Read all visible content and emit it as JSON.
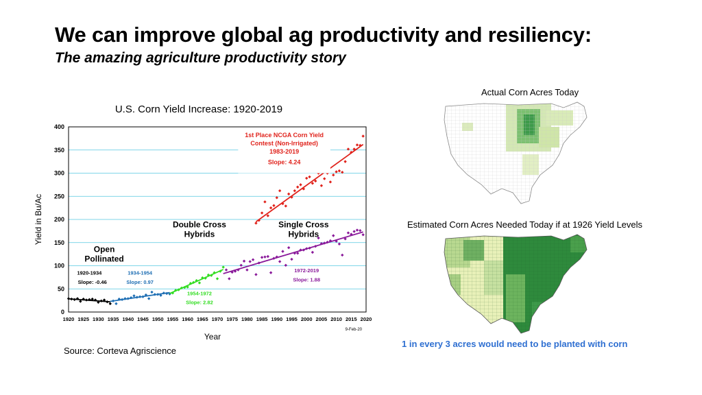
{
  "slide": {
    "title": "We can improve global ag productivity and resiliency:",
    "subtitle": "The amazing agriculture productivity story",
    "source": "Source: Corteva Agriscience"
  },
  "maps": {
    "actual_title": "Actual Corn Acres Today",
    "needed_title": "Estimated Corn Acres Needed Today if at 1926 Yield Levels",
    "caption": "1 in every 3 acres would need to be planted with corn"
  },
  "colors": {
    "open": "#000000",
    "open2": "#1f6fb4",
    "double": "#33dd22",
    "single": "#8a1a9a",
    "ncga": "#e0231c",
    "grid": "#55c8e0",
    "map_dark": "#1e7a32",
    "map_light": "#e8f0b8"
  },
  "chart_data": {
    "type": "scatter",
    "title": "U.S. Corn Yield Increase: 1920-2019",
    "xlabel": "Year",
    "ylabel": "Yield in Bu/Ac",
    "xlim": [
      1920,
      2020
    ],
    "ylim": [
      0,
      400
    ],
    "xticks": [
      1920,
      1925,
      1930,
      1935,
      1940,
      1945,
      1950,
      1955,
      1960,
      1965,
      1970,
      1975,
      1980,
      1985,
      1990,
      1995,
      2000,
      2005,
      2010,
      2015,
      2020
    ],
    "yticks": [
      0,
      50,
      100,
      150,
      200,
      250,
      300,
      350,
      400
    ],
    "grid": true,
    "date_stamp": "9-Feb-20",
    "eras": [
      {
        "name": "Open Pollinated",
        "label_lines": [
          "Open",
          "Pollinated"
        ]
      },
      {
        "name": "Double Cross Hybrids",
        "label_lines": [
          "Double Cross",
          "Hybrids"
        ]
      },
      {
        "name": "Single Cross Hybrids",
        "label_lines": [
          "Single Cross",
          "Hybrids"
        ]
      }
    ],
    "series": [
      {
        "name": "1920-1934",
        "color_key": "open",
        "slope_label": "Slope: -0.46",
        "x": [
          1920,
          1921,
          1922,
          1923,
          1924,
          1925,
          1926,
          1927,
          1928,
          1929,
          1930,
          1931,
          1932,
          1933,
          1934
        ],
        "y": [
          29,
          28,
          27,
          29,
          23,
          28,
          26,
          27,
          28,
          26,
          21,
          24,
          26,
          22,
          18
        ],
        "trend": [
          [
            1920,
            28.5
          ],
          [
            1934,
            22
          ]
        ]
      },
      {
        "name": "1934-1954",
        "color_key": "open2",
        "slope_label": "Slope: 0.97",
        "x": [
          1935,
          1936,
          1937,
          1938,
          1939,
          1940,
          1941,
          1942,
          1943,
          1944,
          1945,
          1946,
          1947,
          1948,
          1949,
          1950,
          1951,
          1952,
          1953,
          1954
        ],
        "y": [
          24,
          18,
          28,
          27,
          29,
          29,
          31,
          35,
          32,
          33,
          33,
          37,
          29,
          43,
          38,
          38,
          36,
          41,
          40,
          39
        ],
        "trend": [
          [
            1934,
            23
          ],
          [
            1954,
            42
          ]
        ]
      },
      {
        "name": "1954-1972",
        "color_key": "double",
        "slope_label": "Slope: 2.82",
        "x": [
          1955,
          1956,
          1957,
          1958,
          1959,
          1960,
          1961,
          1962,
          1963,
          1964,
          1965,
          1966,
          1967,
          1968,
          1969,
          1970,
          1971,
          1972
        ],
        "y": [
          41,
          47,
          48,
          52,
          53,
          54,
          62,
          64,
          68,
          63,
          74,
          73,
          80,
          79,
          85,
          72,
          88,
          97
        ],
        "trend": [
          [
            1954,
            40
          ],
          [
            1972,
            92
          ]
        ]
      },
      {
        "name": "1972-2019",
        "color_key": "single",
        "slope_label": "Slope: 1.88",
        "x": [
          1973,
          1974,
          1975,
          1976,
          1977,
          1978,
          1979,
          1980,
          1981,
          1982,
          1983,
          1984,
          1985,
          1986,
          1987,
          1988,
          1989,
          1990,
          1991,
          1992,
          1993,
          1994,
          1995,
          1996,
          1997,
          1998,
          1999,
          2000,
          2001,
          2002,
          2003,
          2004,
          2005,
          2006,
          2007,
          2008,
          2009,
          2010,
          2011,
          2012,
          2013,
          2014,
          2015,
          2016,
          2017,
          2018,
          2019
        ],
        "y": [
          91,
          72,
          86,
          88,
          91,
          101,
          110,
          91,
          109,
          113,
          81,
          106,
          118,
          119,
          120,
          85,
          116,
          119,
          109,
          131,
          101,
          139,
          114,
          127,
          127,
          134,
          134,
          137,
          138,
          129,
          142,
          160,
          148,
          149,
          151,
          154,
          165,
          153,
          147,
          123,
          158,
          171,
          168,
          174,
          177,
          176,
          167
        ],
        "trend": [
          [
            1972,
            83
          ],
          [
            2019,
            173
          ]
        ]
      },
      {
        "name": "1983-2019",
        "color_key": "ncga",
        "slope_label": "Slope: 4.24",
        "title_lines": [
          "1st Place NCGA Corn Yield",
          "Contest (Non-Irrigated)",
          "1983-2019"
        ],
        "x": [
          1983,
          1984,
          1985,
          1986,
          1987,
          1988,
          1989,
          1990,
          1991,
          1992,
          1993,
          1994,
          1995,
          1996,
          1997,
          1998,
          1999,
          2000,
          2001,
          2002,
          2003,
          2004,
          2005,
          2006,
          2007,
          2008,
          2009,
          2010,
          2011,
          2012,
          2013,
          2014,
          2015,
          2016,
          2017,
          2018,
          2019
        ],
        "y": [
          192,
          198,
          214,
          238,
          208,
          225,
          230,
          247,
          262,
          234,
          229,
          255,
          248,
          262,
          270,
          275,
          266,
          289,
          292,
          278,
          283,
          300,
          273,
          288,
          300,
          281,
          296,
          303,
          305,
          302,
          325,
          352,
          345,
          352,
          361,
          360,
          380
        ],
        "trend": [
          [
            1983,
            195
          ],
          [
            2019,
            362
          ]
        ]
      }
    ]
  }
}
